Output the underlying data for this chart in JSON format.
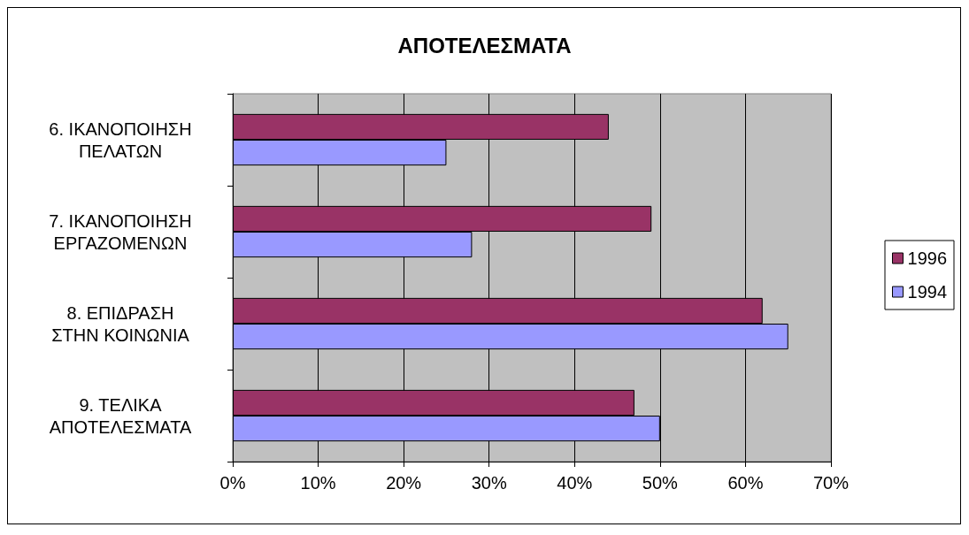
{
  "chart_data": {
    "type": "bar",
    "orientation": "horizontal",
    "title": "ΑΠΟΤΕΛΕΣΜΑΤΑ",
    "categories": [
      "6. ΙΚΑΝΟΠΟΙΗΣΗ\nΠΕΛΑΤΩΝ",
      "7. ΙΚΑΝΟΠΟΙΗΣΗ\nΕΡΓΑΖΟΜΕΝΩΝ",
      "8. ΕΠΙΔΡΑΣΗ\nΣΤΗΝ ΚΟΙΝΩΝΙΑ",
      "9. ΤΕΛΙΚΑ\nΑΠΟΤΕΛΕΣΜΑΤΑ"
    ],
    "series": [
      {
        "name": "1996",
        "color": "#993366",
        "values": [
          44,
          49,
          62,
          47
        ]
      },
      {
        "name": "1994",
        "color": "#9999ff",
        "values": [
          25,
          28,
          65,
          50
        ]
      }
    ],
    "xlim": [
      0,
      70
    ],
    "xticks": [
      {
        "value": 0,
        "label": "0%"
      },
      {
        "value": 10,
        "label": "10%"
      },
      {
        "value": 20,
        "label": "20%"
      },
      {
        "value": 30,
        "label": "30%"
      },
      {
        "value": 40,
        "label": "40%"
      },
      {
        "value": 50,
        "label": "50%"
      },
      {
        "value": 60,
        "label": "60%"
      },
      {
        "value": 70,
        "label": "70%"
      }
    ],
    "grid": "x",
    "legend": "right"
  }
}
